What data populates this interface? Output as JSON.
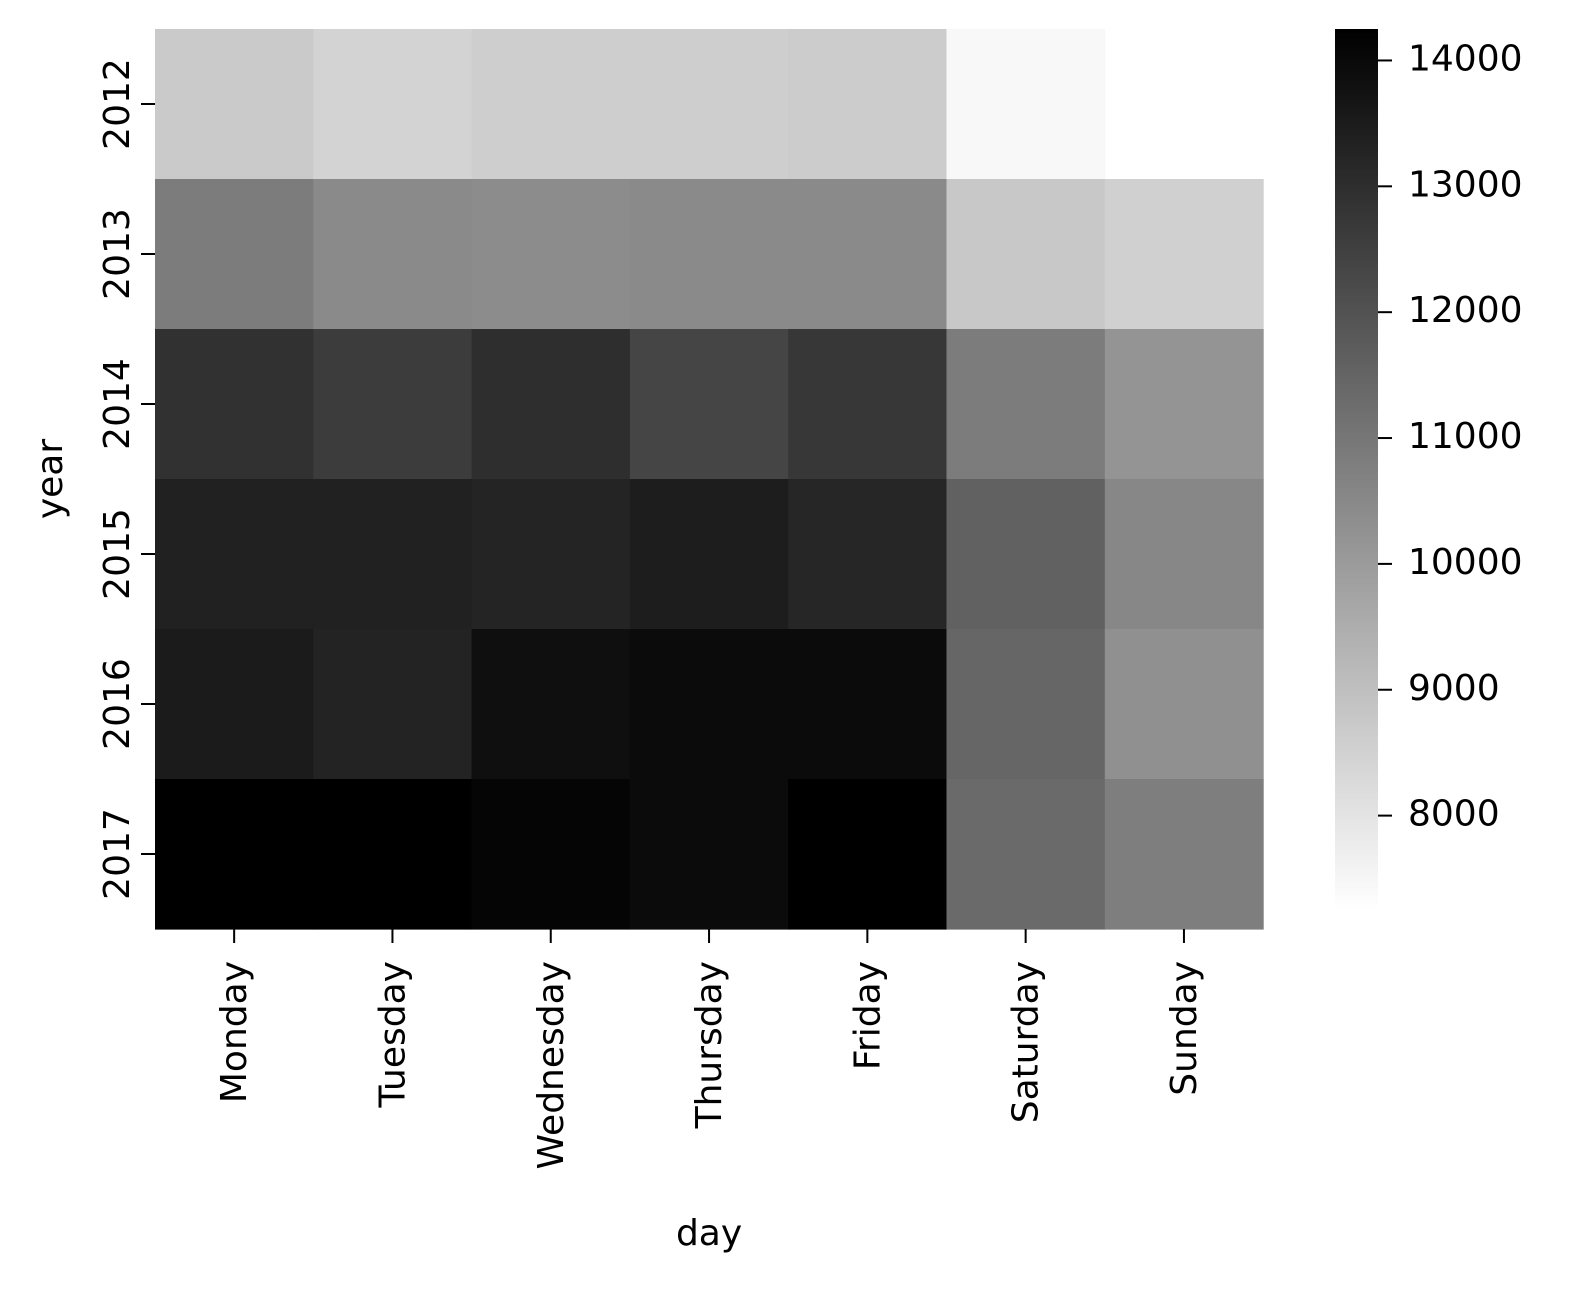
{
  "chart_data": {
    "type": "heatmap",
    "title": "",
    "xlabel": "day",
    "ylabel": "year",
    "x_categories": [
      "Monday",
      "Tuesday",
      "Wednesday",
      "Thursday",
      "Friday",
      "Saturday",
      "Sunday"
    ],
    "y_categories": [
      "2012",
      "2013",
      "2014",
      "2015",
      "2016",
      "2017"
    ],
    "values": [
      [
        8700,
        8450,
        8600,
        8600,
        8650,
        7450,
        null
      ],
      [
        10850,
        10450,
        10400,
        10450,
        10450,
        8750,
        8550
      ],
      [
        12900,
        12600,
        13000,
        12350,
        12750,
        10850,
        10200
      ],
      [
        13350,
        13350,
        13250,
        13450,
        13200,
        11600,
        10550
      ],
      [
        13500,
        13300,
        13850,
        13950,
        13950,
        11450,
        10300
      ],
      [
        14250,
        14250,
        14100,
        13950,
        14250,
        11350,
        10800
      ]
    ],
    "colorbar": {
      "range": [
        7250,
        14250
      ],
      "ticks": [
        8000,
        9000,
        10000,
        11000,
        12000,
        13000,
        14000
      ],
      "tick_labels": [
        "8000",
        "9000",
        "10000",
        "11000",
        "12000",
        "13000",
        "14000"
      ],
      "colormap": "greys",
      "low_color": "#ffffff",
      "high_color": "#000000"
    }
  }
}
